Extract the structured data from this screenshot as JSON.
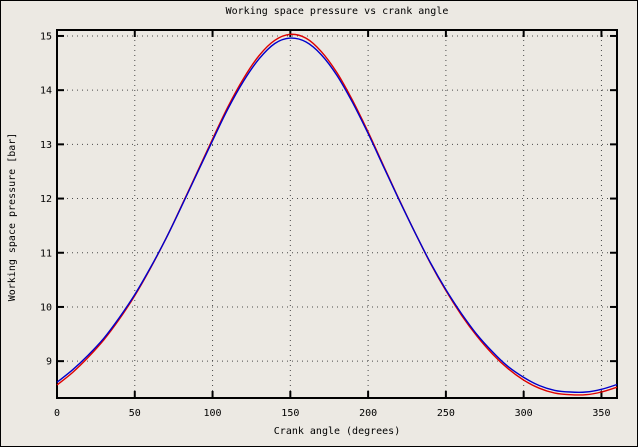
{
  "window": {
    "background": "#ece9e3",
    "frame_color": "#000000"
  },
  "chart_data": {
    "type": "line",
    "title": "Working space pressure vs crank angle",
    "xlabel": "Crank angle (degrees)",
    "ylabel": "Working space pressure [bar]",
    "xlim": [
      0,
      360
    ],
    "ylim": [
      8.32,
      15.11
    ],
    "xticks": [
      0,
      50,
      100,
      150,
      200,
      250,
      300,
      350
    ],
    "yticks": [
      9,
      10,
      11,
      12,
      13,
      14,
      15
    ],
    "grid": true,
    "grid_style": "dotted",
    "legend": "none",
    "x": [
      0,
      10,
      20,
      30,
      40,
      50,
      60,
      70,
      80,
      90,
      100,
      110,
      120,
      130,
      140,
      150,
      160,
      170,
      180,
      190,
      200,
      210,
      220,
      230,
      240,
      250,
      260,
      270,
      280,
      290,
      300,
      310,
      320,
      330,
      340,
      350,
      360
    ],
    "series": [
      {
        "name": "red",
        "color": "#dd0000",
        "values": [
          8.56,
          8.79,
          9.07,
          9.39,
          9.77,
          10.21,
          10.71,
          11.26,
          11.86,
          12.48,
          13.1,
          13.7,
          14.22,
          14.64,
          14.92,
          15.03,
          14.96,
          14.71,
          14.32,
          13.81,
          13.23,
          12.6,
          11.98,
          11.38,
          10.81,
          10.3,
          9.85,
          9.46,
          9.13,
          8.86,
          8.65,
          8.5,
          8.41,
          8.38,
          8.38,
          8.43,
          8.52
        ]
      },
      {
        "name": "blue",
        "color": "#0000cc",
        "values": [
          8.61,
          8.84,
          9.11,
          9.42,
          9.8,
          10.23,
          10.72,
          11.26,
          11.85,
          12.46,
          13.07,
          13.66,
          14.17,
          14.58,
          14.86,
          14.96,
          14.89,
          14.65,
          14.27,
          13.77,
          13.2,
          12.58,
          11.97,
          11.38,
          10.82,
          10.32,
          9.88,
          9.49,
          9.17,
          8.9,
          8.7,
          8.55,
          8.46,
          8.43,
          8.43,
          8.48,
          8.57
        ]
      }
    ]
  }
}
